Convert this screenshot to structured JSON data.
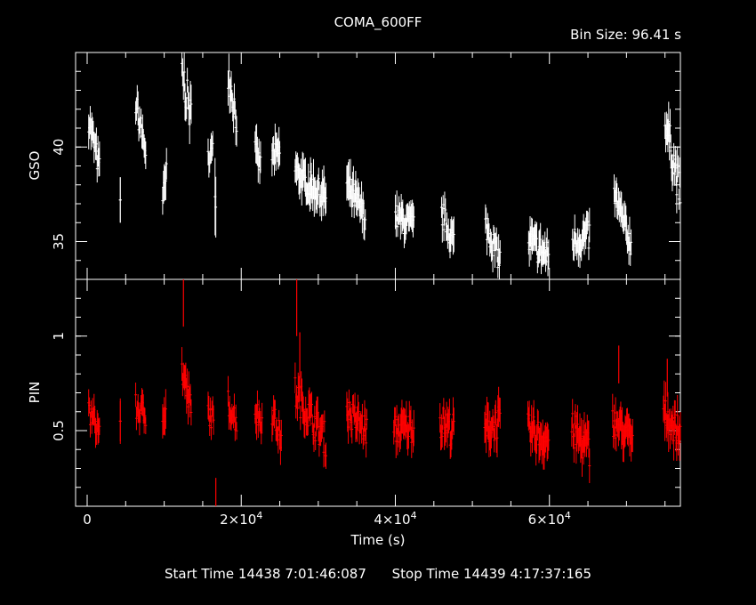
{
  "header": {
    "title": "COMA_600FF",
    "bin_size": "Bin Size: 96.41 s"
  },
  "footer": {
    "start": "Start Time 14438  7:01:46:087",
    "stop": "Stop Time 14439  4:17:37:165"
  },
  "colors": {
    "gso": "#ffffff",
    "pin": "#ff0000",
    "axes": "#ffffff",
    "background": "#000000"
  },
  "chart_data": [
    {
      "type": "scatter",
      "panel": "top",
      "ylabel": "GSO",
      "xlabel": "",
      "xlim": [
        -1500,
        77000
      ],
      "ylim": [
        33.0,
        45.0
      ],
      "yticks": [
        35,
        40
      ],
      "series": [
        {
          "segments": [
            {
              "x0": 200,
              "x1": 1600,
              "y0": 41.5,
              "y1": 38.8,
              "jitter": 0.7,
              "err": 0.8
            },
            {
              "x0": 4300,
              "x1": 4300,
              "y0": 37.2,
              "y1": 37.2,
              "jitter": 0.0,
              "err": 1.5
            },
            {
              "x0": 6300,
              "x1": 7600,
              "y0": 42.3,
              "y1": 39.8,
              "jitter": 0.7,
              "err": 0.8
            },
            {
              "x0": 9800,
              "x1": 10300,
              "y0": 37.0,
              "y1": 38.5,
              "jitter": 0.7,
              "err": 1.0
            },
            {
              "x0": 12300,
              "x1": 13500,
              "y0": 44.0,
              "y1": 41.5,
              "jitter": 1.0,
              "err": 0.9
            },
            {
              "x0": 15700,
              "x1": 16300,
              "y0": 39.5,
              "y1": 39.8,
              "jitter": 0.5,
              "err": 0.9
            },
            {
              "x0": 16600,
              "x1": 16700,
              "y0": 37.5,
              "y1": 37.2,
              "jitter": 0.5,
              "err": 1.8
            },
            {
              "x0": 18300,
              "x1": 19400,
              "y0": 44.0,
              "y1": 41.5,
              "jitter": 0.9,
              "err": 0.8
            },
            {
              "x0": 21800,
              "x1": 22500,
              "y0": 39.8,
              "y1": 39.0,
              "jitter": 0.6,
              "err": 0.9
            },
            {
              "x0": 24000,
              "x1": 25000,
              "y0": 39.5,
              "y1": 39.7,
              "jitter": 0.6,
              "err": 0.9
            },
            {
              "x0": 27000,
              "x1": 29000,
              "y0": 38.8,
              "y1": 37.8,
              "jitter": 0.6,
              "err": 0.9
            },
            {
              "x0": 29000,
              "x1": 31000,
              "y0": 38.0,
              "y1": 37.3,
              "jitter": 0.7,
              "err": 0.9
            },
            {
              "x0": 33700,
              "x1": 36100,
              "y0": 38.0,
              "y1": 36.3,
              "jitter": 0.7,
              "err": 0.9
            },
            {
              "x0": 40000,
              "x1": 42400,
              "y0": 36.3,
              "y1": 35.8,
              "jitter": 0.7,
              "err": 0.8
            },
            {
              "x0": 46000,
              "x1": 47600,
              "y0": 36.5,
              "y1": 35.0,
              "jitter": 0.7,
              "err": 0.8
            },
            {
              "x0": 51700,
              "x1": 53600,
              "y0": 35.9,
              "y1": 34.0,
              "jitter": 0.7,
              "err": 0.8
            },
            {
              "x0": 57300,
              "x1": 59900,
              "y0": 35.0,
              "y1": 34.2,
              "jitter": 0.8,
              "err": 0.8
            },
            {
              "x0": 63000,
              "x1": 65200,
              "y0": 35.0,
              "y1": 35.3,
              "jitter": 0.8,
              "err": 0.8
            },
            {
              "x0": 68400,
              "x1": 70600,
              "y0": 37.5,
              "y1": 34.8,
              "jitter": 0.7,
              "err": 0.8
            },
            {
              "x0": 75000,
              "x1": 77000,
              "y0": 41.5,
              "y1": 37.5,
              "jitter": 1.0,
              "err": 0.9
            }
          ]
        }
      ]
    },
    {
      "type": "scatter",
      "panel": "bottom",
      "ylabel": "PIN",
      "xlabel": "Time (s)",
      "xlim": [
        -1500,
        77000
      ],
      "ylim": [
        0.1,
        1.3
      ],
      "yticks": [
        0.5,
        1
      ],
      "xticks": [
        0,
        20000,
        40000,
        60000
      ],
      "xtick_mantissa": [
        "0",
        "2",
        "4",
        "6"
      ],
      "xtick_base": "×10",
      "xtick_exponent": "4",
      "series": [
        {
          "segments": [
            {
              "x0": 200,
              "x1": 1600,
              "y0": 0.6,
              "y1": 0.5,
              "jitter": 0.07,
              "err": 0.07
            },
            {
              "x0": 4300,
              "x1": 4300,
              "y0": 0.55,
              "y1": 0.55,
              "jitter": 0.0,
              "err": 0.15
            },
            {
              "x0": 6300,
              "x1": 7600,
              "y0": 0.62,
              "y1": 0.58,
              "jitter": 0.07,
              "err": 0.07
            },
            {
              "x0": 9800,
              "x1": 10200,
              "y0": 0.62,
              "y1": 0.58,
              "jitter": 0.08,
              "err": 0.1
            },
            {
              "x0": 12300,
              "x1": 13500,
              "y0": 0.82,
              "y1": 0.6,
              "jitter": 0.09,
              "err": 0.08
            },
            {
              "x0": 15700,
              "x1": 16400,
              "y0": 0.6,
              "y1": 0.55,
              "jitter": 0.06,
              "err": 0.07
            },
            {
              "x0": 18300,
              "x1": 19400,
              "y0": 0.65,
              "y1": 0.55,
              "jitter": 0.07,
              "err": 0.07
            },
            {
              "x0": 21800,
              "x1": 22700,
              "y0": 0.6,
              "y1": 0.55,
              "jitter": 0.07,
              "err": 0.08
            },
            {
              "x0": 24000,
              "x1": 25200,
              "y0": 0.6,
              "y1": 0.45,
              "jitter": 0.07,
              "err": 0.08
            },
            {
              "x0": 27000,
              "x1": 31000,
              "y0": 0.7,
              "y1": 0.45,
              "jitter": 0.09,
              "err": 0.08
            },
            {
              "x0": 33700,
              "x1": 36300,
              "y0": 0.6,
              "y1": 0.5,
              "jitter": 0.08,
              "err": 0.08
            },
            {
              "x0": 39800,
              "x1": 42400,
              "y0": 0.5,
              "y1": 0.52,
              "jitter": 0.08,
              "err": 0.08
            },
            {
              "x0": 45800,
              "x1": 47600,
              "y0": 0.55,
              "y1": 0.5,
              "jitter": 0.09,
              "err": 0.08
            },
            {
              "x0": 51600,
              "x1": 53600,
              "y0": 0.5,
              "y1": 0.55,
              "jitter": 0.09,
              "err": 0.09
            },
            {
              "x0": 57200,
              "x1": 59900,
              "y0": 0.5,
              "y1": 0.45,
              "jitter": 0.09,
              "err": 0.09
            },
            {
              "x0": 62900,
              "x1": 65200,
              "y0": 0.5,
              "y1": 0.4,
              "jitter": 0.1,
              "err": 0.09
            },
            {
              "x0": 68200,
              "x1": 70800,
              "y0": 0.55,
              "y1": 0.45,
              "jitter": 0.08,
              "err": 0.09
            },
            {
              "x0": 74800,
              "x1": 77000,
              "y0": 0.6,
              "y1": 0.48,
              "jitter": 0.08,
              "err": 0.09
            }
          ],
          "spikes": [
            {
              "x": 12500,
              "y": 1.25,
              "err": 0.2
            },
            {
              "x": 16700,
              "y": 0.15,
              "err": 0.1
            },
            {
              "x": 27200,
              "y": 1.2,
              "err": 0.2
            },
            {
              "x": 27600,
              "y": 0.9,
              "err": 0.12
            },
            {
              "x": 69000,
              "y": 0.85,
              "err": 0.1
            },
            {
              "x": 75300,
              "y": 0.78,
              "err": 0.1
            }
          ]
        }
      ]
    }
  ]
}
